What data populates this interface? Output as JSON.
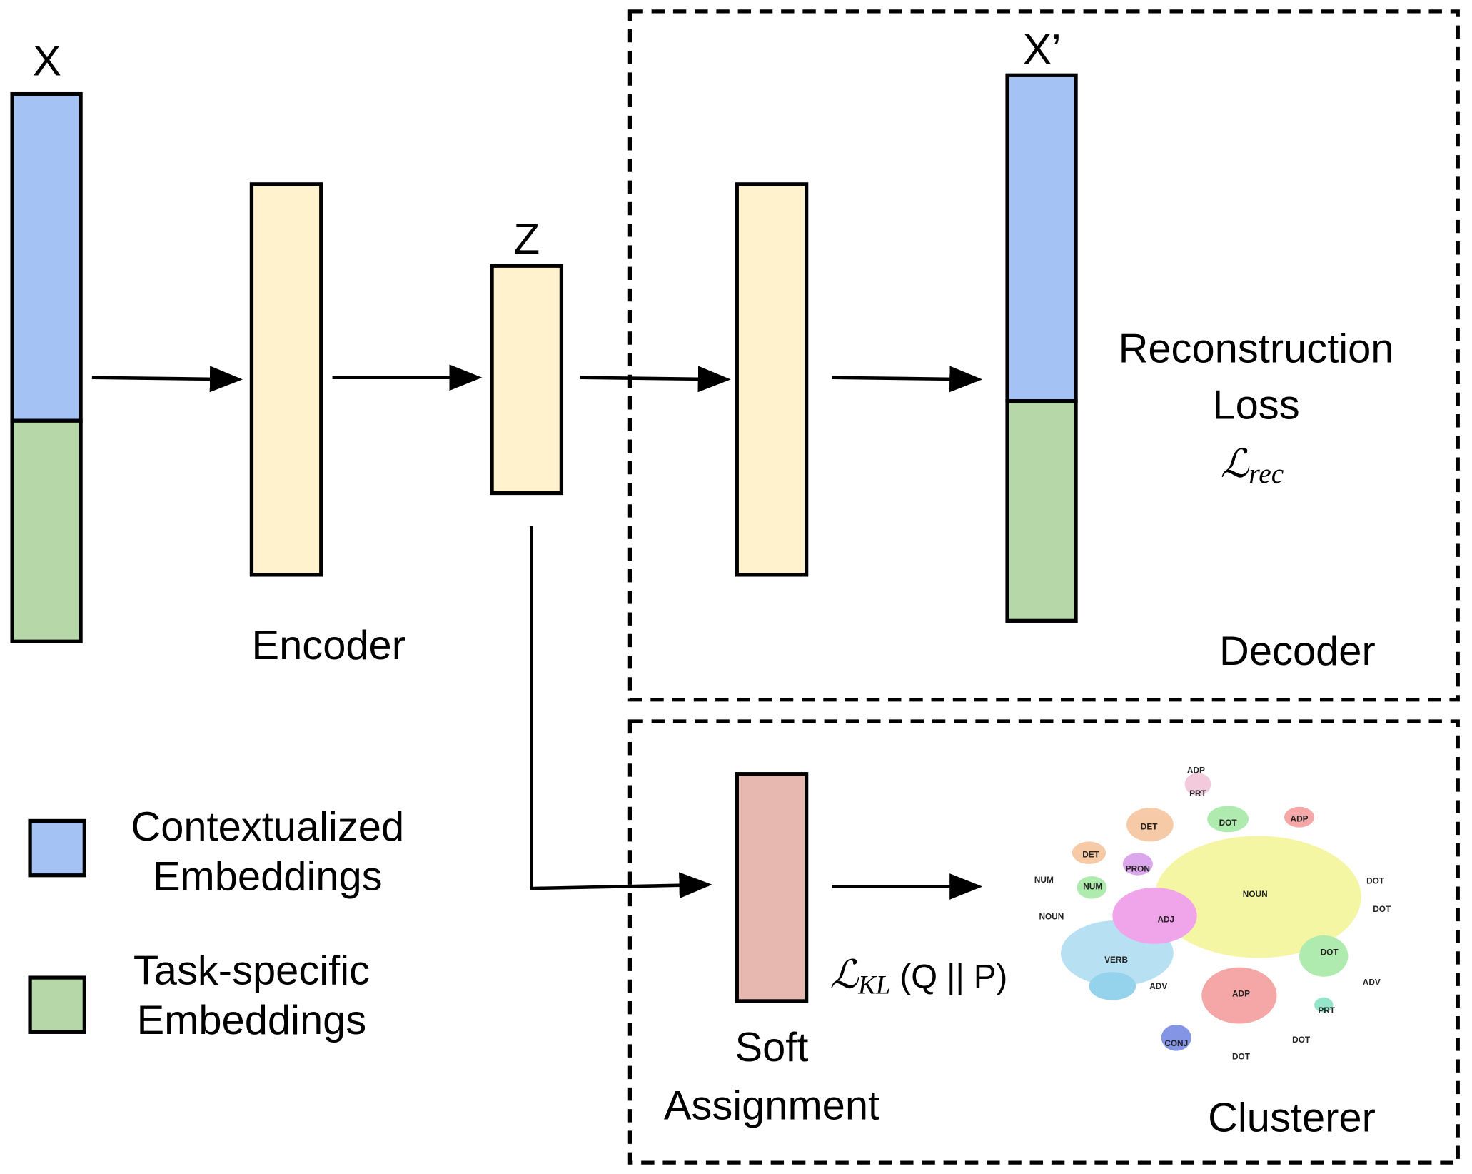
{
  "input": {
    "label": "X"
  },
  "encoder": {
    "label": "Encoder"
  },
  "latent": {
    "label": "Z"
  },
  "decoder": {
    "label": "Decoder",
    "output_label": "X’",
    "loss": {
      "lines": [
        "Reconstruction",
        "Loss"
      ],
      "symbol": "ℒ",
      "subscript": "rec"
    }
  },
  "clusterer": {
    "label": "Clusterer",
    "soft_assignment": [
      "Soft",
      "Assignment"
    ],
    "loss": {
      "symbol": "ℒ",
      "subscript": "KL",
      "argument": "(Q || P)"
    },
    "cluster_labels": [
      "ADP",
      "PRT",
      "DET",
      "DOT",
      "ADP",
      "DET",
      "PRON",
      "NUM",
      "NUM",
      "NOUN",
      "DOT",
      "DOT",
      "NOUN",
      "ADJ",
      "DOT",
      "VERB",
      "ADV",
      "ADV",
      "ADP",
      "PRT",
      "DOT",
      "CONJ",
      "DOT"
    ]
  },
  "legend": [
    {
      "lines": [
        "Contextualized",
        "Embeddings"
      ]
    },
    {
      "lines": [
        "Task-specific",
        "Embeddings"
      ]
    }
  ]
}
